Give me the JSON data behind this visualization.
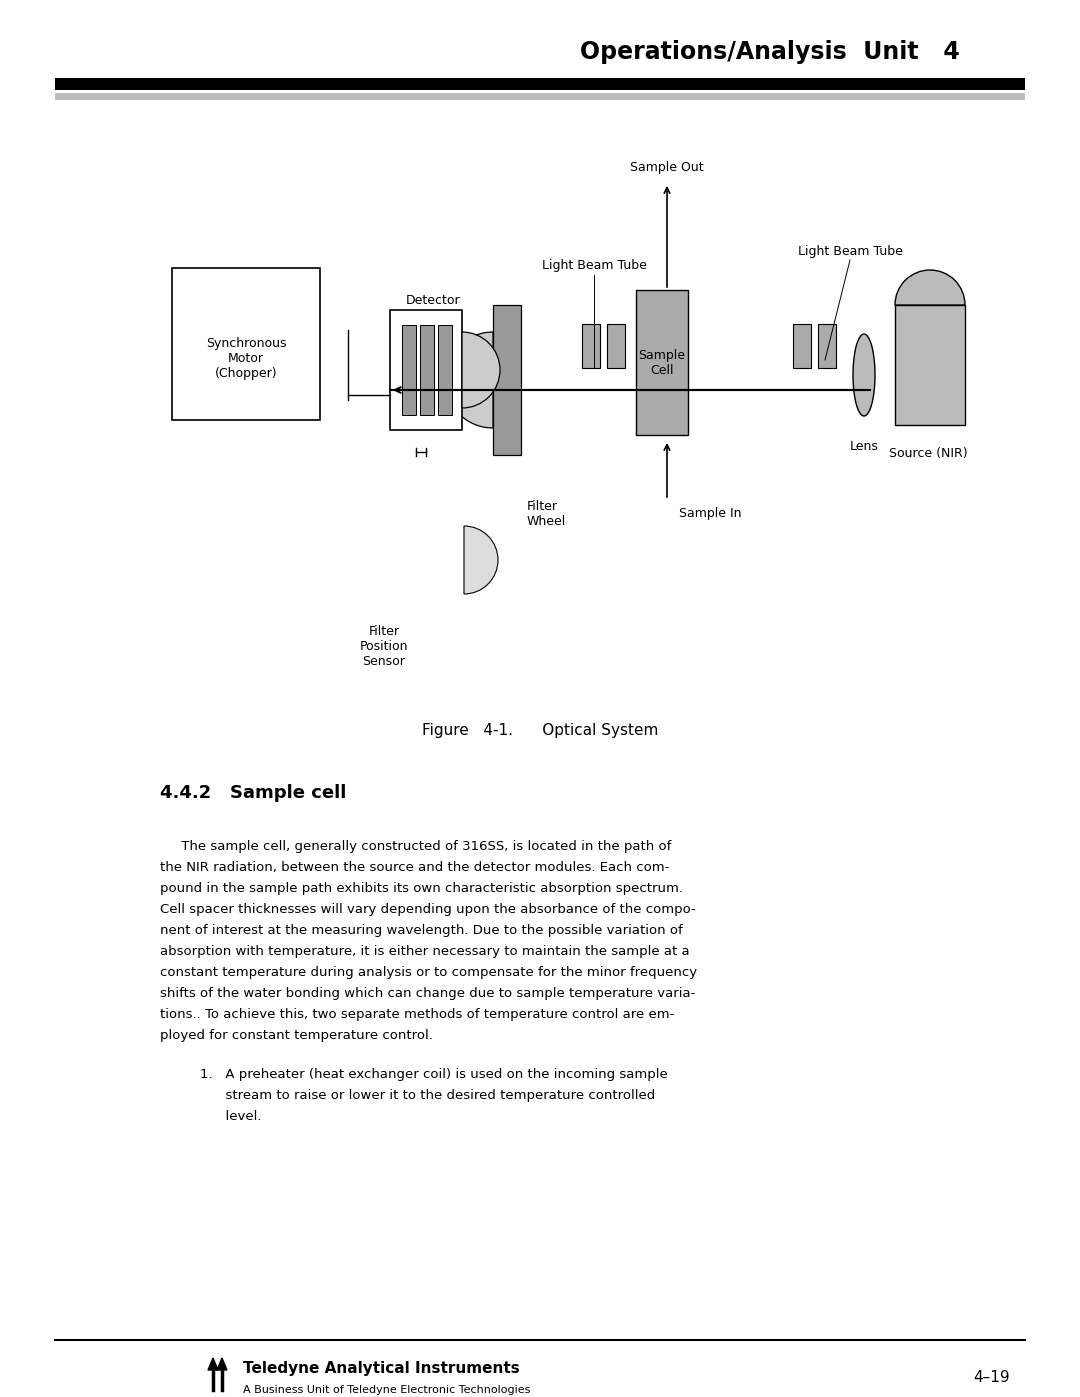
{
  "page_title": "Operations/Analysis  Unit   4",
  "page_number": "4–19",
  "footer_company": "Teledyne Analytical Instruments",
  "footer_subtitle": "A Business Unit of Teledyne Electronic Technologies",
  "figure_caption": "Figure   4-1.      Optical System",
  "section_title": "4.4.2   Sample cell",
  "body_lines": [
    "     The sample cell, generally constructed of 316SS, is located in the path of",
    "the NIR radiation, between the source and the detector modules. Each com-",
    "pound in the sample path exhibits its own characteristic absorption spectrum.",
    "Cell spacer thicknesses will vary depending upon the absorbance of the compo-",
    "nent of interest at the measuring wavelength. Due to the possible variation of",
    "absorption with temperature, it is either necessary to maintain the sample at a",
    "constant temperature during analysis or to compensate for the minor frequency",
    "shifts of the water bonding which can change due to sample temperature varia-",
    "tions.. To achieve this, two separate methods of temperature control are em-",
    "ployed for constant temperature control."
  ],
  "list_lines": [
    "1.   A preheater (heat exchanger coil) is used on the incoming sample",
    "      stream to raise or lower it to the desired temperature controlled",
    "      level."
  ],
  "bg_color": "#ffffff",
  "text_color": "#000000",
  "gray_med": "#aaaaaa",
  "gray_dark": "#888888",
  "gray_light": "#cccccc",
  "gray_source": "#bbbbbb"
}
